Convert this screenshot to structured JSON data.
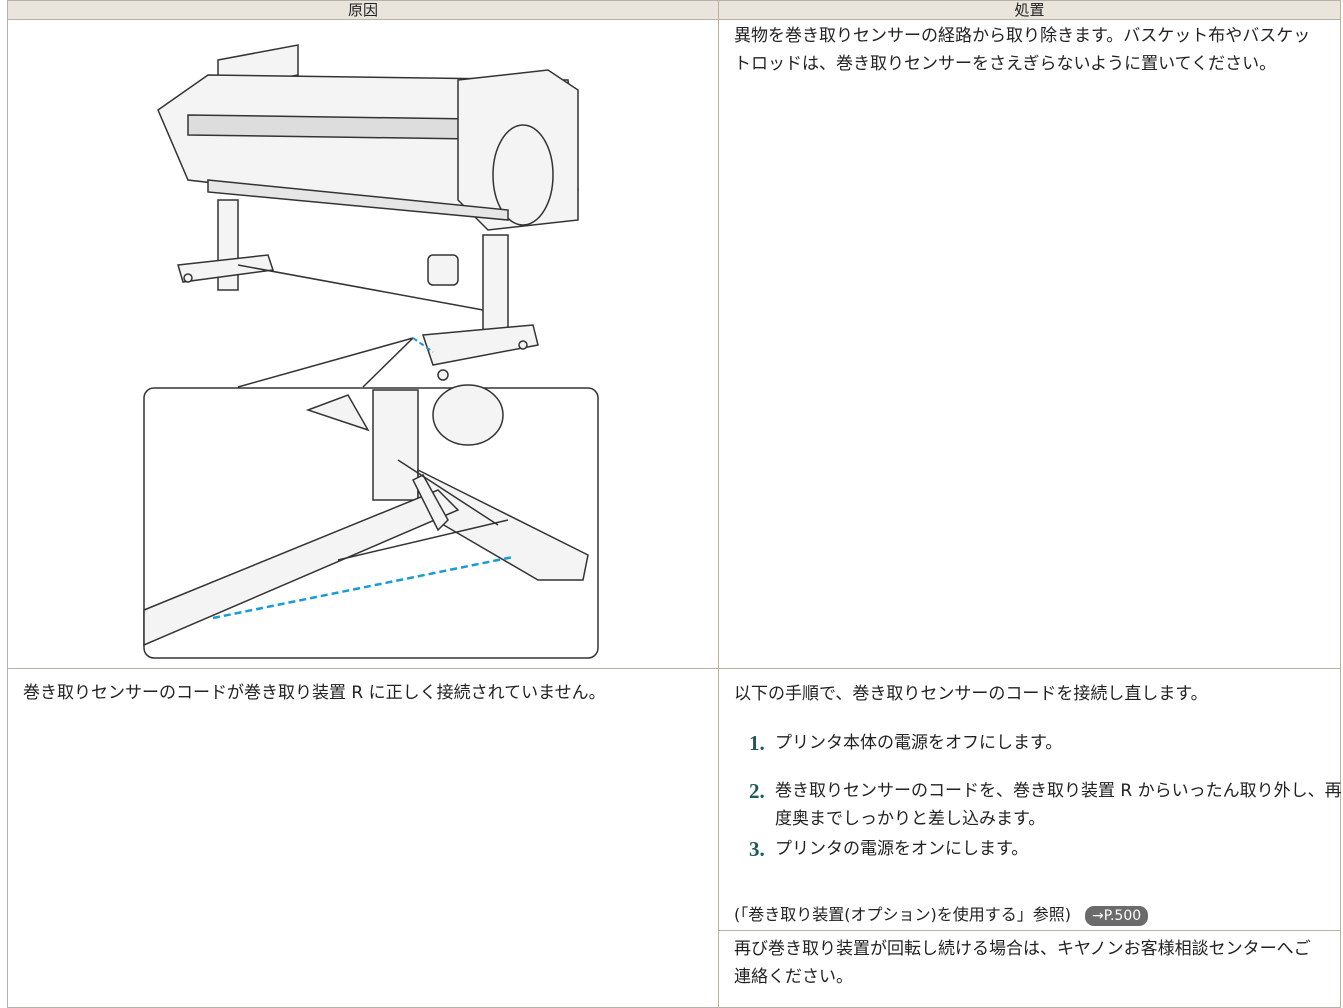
{
  "table": {
    "headers": [
      "原因",
      "処置"
    ],
    "rows": [
      {
        "action": "異物を巻き取りセンサーの経路から取り除きます。バスケット布やバスケットロッドは、巻き取りセンサーをさえぎらないように置いてください。"
      },
      {
        "cause": "巻き取りセンサーのコードが巻き取り装置 R に正しく接続されていません。",
        "intro": "以下の手順で、巻き取りセンサーのコードを接続し直します。",
        "steps": [
          {
            "number": "1.",
            "text": "プリンタ本体の電源をオフにします。"
          },
          {
            "number": "2.",
            "text": "巻き取りセンサーのコードを、巻き取り装置 R からいったん取り外し、再度奥までしっかりと差し込みます。"
          },
          {
            "number": "3.",
            "text": "プリンタの電源をオンにします。"
          }
        ],
        "reference": "(「巻き取り装置(オプション)を使用する」参照)",
        "link": "→P.500",
        "note": "再び巻き取り装置が回転し続ける場合は、キヤノンお客様相談センターへご連絡ください。"
      }
    ]
  }
}
